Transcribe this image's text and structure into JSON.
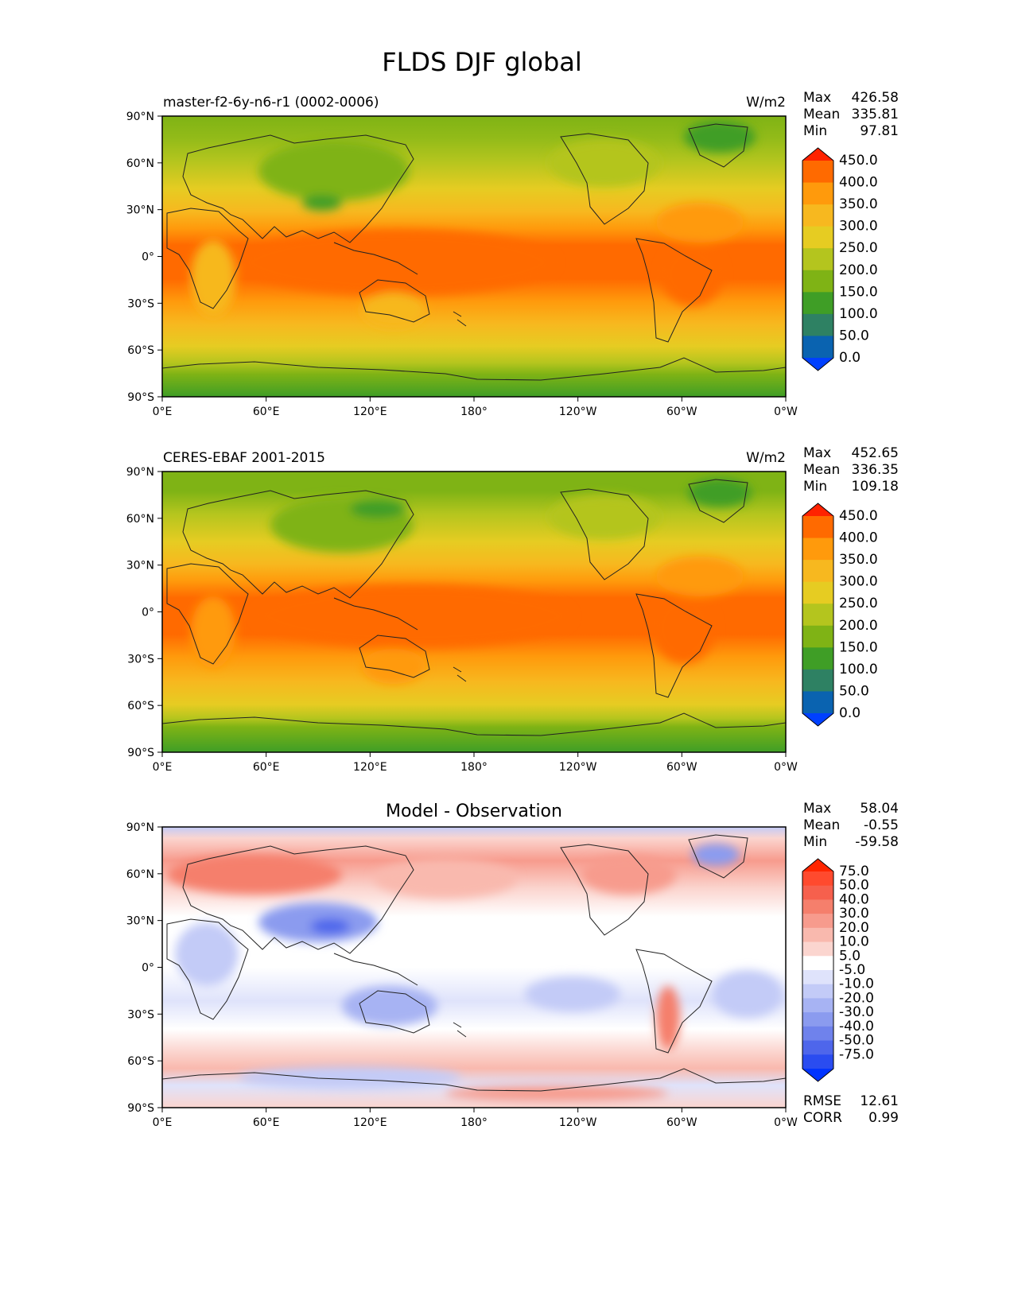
{
  "figure": {
    "title": "FLDS DJF global"
  },
  "axes": {
    "lat_ticks": [
      "90°N",
      "60°N",
      "30°N",
      "0°",
      "30°S",
      "60°S",
      "90°S"
    ],
    "lon_ticks": [
      "0°E",
      "60°E",
      "120°E",
      "180°",
      "120°W",
      "60°W",
      "0°W"
    ]
  },
  "panels": [
    {
      "title_left": "master-f2-6y-n6-r1 (0002-0006)",
      "title_center": "",
      "units": "W/m2",
      "stats": [
        {
          "label": "Max",
          "value": "426.58"
        },
        {
          "label": "Mean",
          "value": "335.81"
        },
        {
          "label": "Min",
          "value": "97.81"
        }
      ],
      "colorbar": {
        "labels": [
          "450.0",
          "400.0",
          "350.0",
          "300.0",
          "250.0",
          "200.0",
          "150.0",
          "100.0",
          "50.0",
          "0.0"
        ],
        "colors": [
          "#ff2200",
          "#ff6a00",
          "#ff9a0c",
          "#f7b81f",
          "#e6cc22",
          "#b4c51e",
          "#7fb315",
          "#3f9e26",
          "#2e8163",
          "#0a63b0",
          "#0040ff"
        ]
      }
    },
    {
      "title_left": "CERES-EBAF 2001-2015",
      "title_center": "",
      "units": "W/m2",
      "stats": [
        {
          "label": "Max",
          "value": "452.65"
        },
        {
          "label": "Mean",
          "value": "336.35"
        },
        {
          "label": "Min",
          "value": "109.18"
        }
      ],
      "colorbar": {
        "labels": [
          "450.0",
          "400.0",
          "350.0",
          "300.0",
          "250.0",
          "200.0",
          "150.0",
          "100.0",
          "50.0",
          "0.0"
        ],
        "colors": [
          "#ff2200",
          "#ff6a00",
          "#ff9a0c",
          "#f7b81f",
          "#e6cc22",
          "#b4c51e",
          "#7fb315",
          "#3f9e26",
          "#2e8163",
          "#0a63b0",
          "#0040ff"
        ]
      }
    },
    {
      "title_left": "",
      "title_center": "Model - Observation",
      "units": "",
      "stats": [
        {
          "label": "Max",
          "value": "58.04"
        },
        {
          "label": "Mean",
          "value": "-0.55"
        },
        {
          "label": "Min",
          "value": "-59.58"
        }
      ],
      "colorbar": {
        "labels": [
          "75.0",
          "50.0",
          "40.0",
          "30.0",
          "20.0",
          "10.0",
          "5.0",
          "-5.0",
          "-10.0",
          "-20.0",
          "-30.0",
          "-40.0",
          "-50.0",
          "-75.0"
        ],
        "colors": [
          "#ff2600",
          "#ff4a2e",
          "#f6604d",
          "#f57f6c",
          "#f79b8d",
          "#f9b9ae",
          "#fbd5cf",
          "#ffffff",
          "#dfe3fb",
          "#c3cbf7",
          "#a7b3f3",
          "#8b9bef",
          "#6f82ec",
          "#4e66eb",
          "#2a4cf0",
          "#0033ff"
        ]
      },
      "metrics": [
        {
          "label": "RMSE",
          "value": "12.61"
        },
        {
          "label": "CORR",
          "value": "0.99"
        }
      ]
    }
  ]
}
